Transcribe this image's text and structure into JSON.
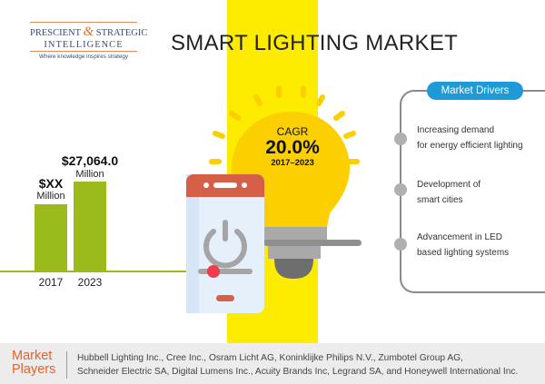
{
  "logo": {
    "line1_a": "PRESCIENT",
    "amp": "&",
    "line1_b": "STRATEGIC",
    "line2": "INTELLIGENCE",
    "tagline": "Where knowledge inspires strategy"
  },
  "title": "SMART LIGHTING MARKET",
  "market_size": {
    "bars": [
      {
        "year": "2017",
        "value": "$XX",
        "unit": "Million"
      },
      {
        "year": "2023",
        "value": "$27,064.0",
        "unit": "Million"
      }
    ],
    "bar_color": "#9bbb1c"
  },
  "cagr": {
    "label": "CAGR",
    "value": "20.0%",
    "period": "2017–2023"
  },
  "drivers": {
    "title": "Market Drivers",
    "accent": "#1f9ad8",
    "items": [
      {
        "line1": "Increasing demand",
        "line2": "for energy efficient lighting"
      },
      {
        "line1": "Development of",
        "line2": "smart cities"
      },
      {
        "line1": "Advancement in LED",
        "line2": "based lighting systems"
      }
    ]
  },
  "players": {
    "label_1": "Market",
    "label_2": "Players",
    "line1": "Hubbell Lighting Inc., Cree Inc., Osram Licht AG, Koninklijke Philips N.V., Zumbotel Group AG,",
    "line2": "Schneider Electric SA, Digital Lumens Inc., Acuity Brands Inc, Legrand SA, and Honeywell International Inc."
  },
  "colors": {
    "stripe": "#fdec00",
    "bulb": "#fccf00",
    "phone_header": "#d65f47",
    "slider_knob": "#ef3c4e",
    "label_orange": "#e0642d"
  }
}
